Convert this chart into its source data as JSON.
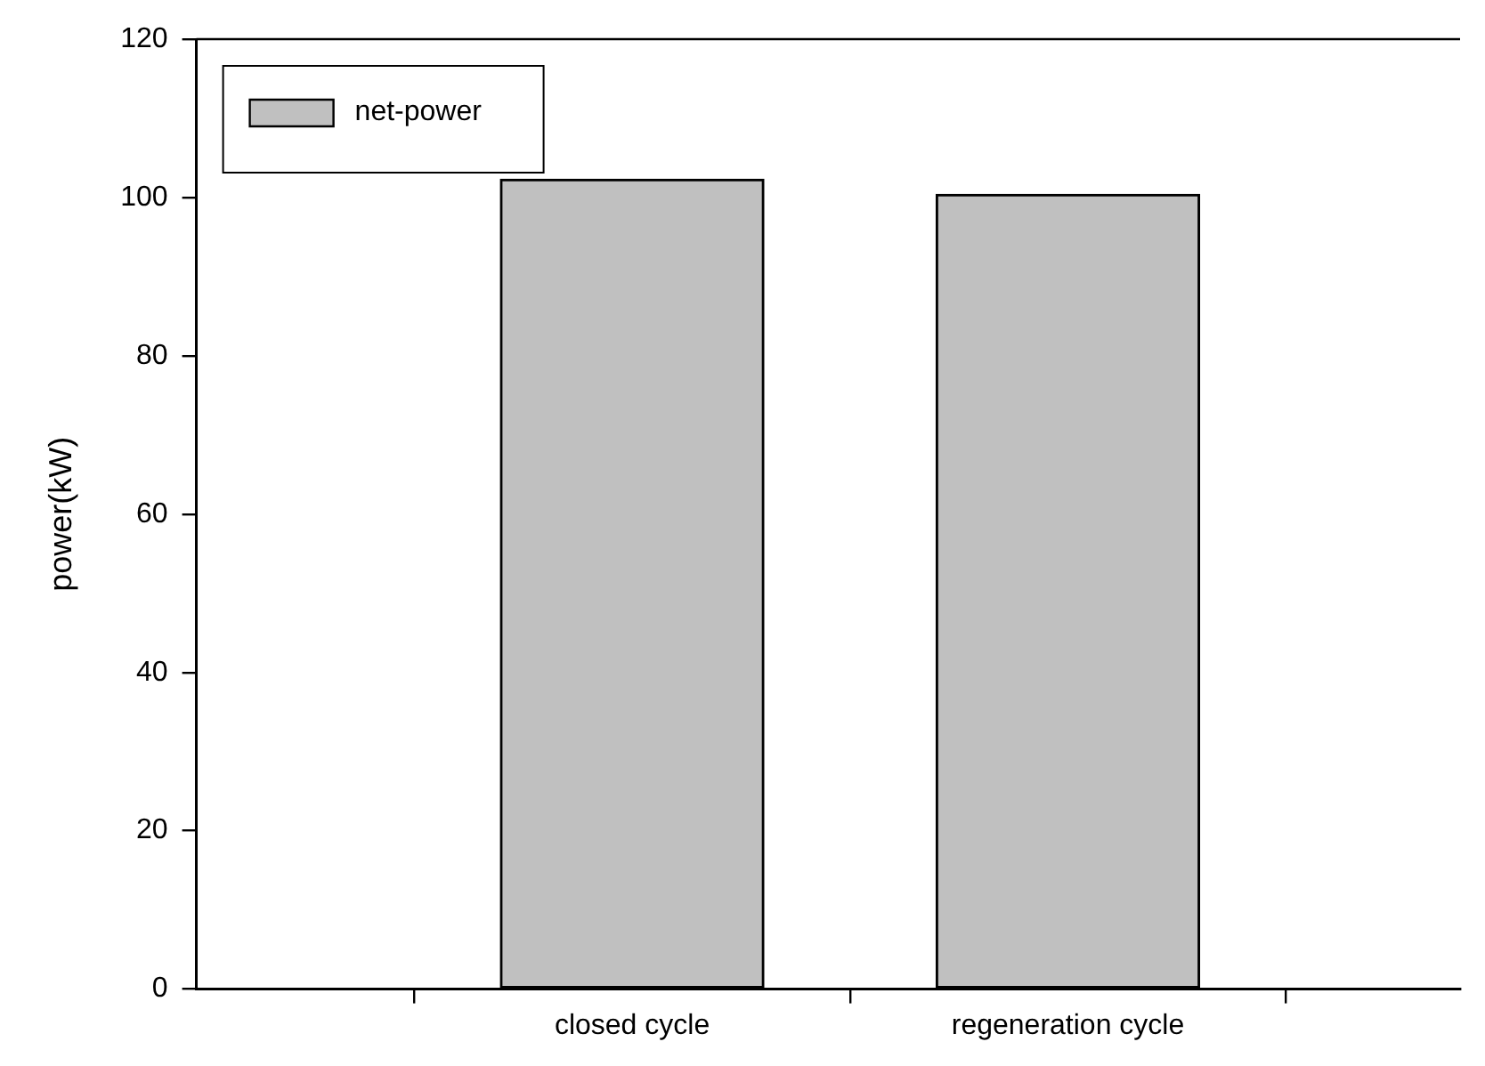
{
  "chart_data": {
    "type": "bar",
    "ylabel": "power(kW)",
    "categories": [
      "closed cycle",
      "regeneration cycle"
    ],
    "series": [
      {
        "name": "net-power",
        "color": "#c0c0c0",
        "values": [
          102.3,
          100.4
        ]
      }
    ],
    "ylim": [
      0,
      120
    ],
    "yticks": [
      0,
      20,
      40,
      60,
      80,
      100,
      120
    ],
    "grid": false,
    "legend": "top left"
  }
}
